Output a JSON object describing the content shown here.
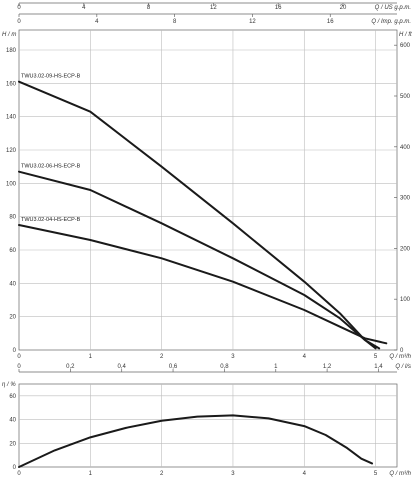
{
  "chart_data": [
    {
      "type": "line",
      "name": "head-chart",
      "x_axis": {
        "label": "Q / m³/h",
        "ticks": [
          0,
          1,
          2,
          3,
          4,
          5
        ],
        "range": [
          0,
          5.3
        ]
      },
      "top_axis_1": {
        "label": "Q / US g.p.m.",
        "ticks": [
          0,
          4,
          8,
          12,
          16,
          20
        ]
      },
      "top_axis_2": {
        "label": "Q / Imp. g.p.m.",
        "ticks": [
          0,
          4,
          8,
          12,
          16
        ]
      },
      "y_left": {
        "label": "H / m",
        "ticks": [
          0,
          20,
          40,
          60,
          80,
          100,
          120,
          140,
          160,
          180
        ],
        "range": [
          0,
          192
        ]
      },
      "y_right": {
        "label": "H / ft",
        "ticks": [
          0,
          100,
          200,
          300,
          400,
          500,
          600
        ]
      },
      "grid": true,
      "series": [
        {
          "name": "TWU3.02-09-HS-ECP-B",
          "points": [
            [
              0,
              161
            ],
            [
              1,
              143
            ],
            [
              2,
              110
            ],
            [
              3,
              76
            ],
            [
              4,
              41
            ],
            [
              4.5,
              22
            ],
            [
              4.85,
              6
            ],
            [
              5.05,
              1
            ]
          ]
        },
        {
          "name": "TWU3.02-06-HS-ECP-B",
          "points": [
            [
              0,
              107
            ],
            [
              1,
              96
            ],
            [
              2,
              76
            ],
            [
              3,
              55
            ],
            [
              4,
              33
            ],
            [
              4.5,
              19
            ],
            [
              4.85,
              6
            ],
            [
              5.0,
              1
            ]
          ]
        },
        {
          "name": "TWU3.02-04-HS-ECP-B",
          "points": [
            [
              0,
              75
            ],
            [
              1,
              66
            ],
            [
              2,
              55
            ],
            [
              3,
              41
            ],
            [
              4,
              24
            ],
            [
              4.5,
              14
            ],
            [
              4.85,
              7
            ],
            [
              5.15,
              4
            ]
          ]
        }
      ]
    },
    {
      "type": "line",
      "name": "efficiency-chart",
      "x_axis": {
        "label": "Q / m³/h",
        "ticks": [
          0,
          1,
          2,
          3,
          4,
          5
        ],
        "range": [
          0,
          5.3
        ]
      },
      "top_axis": {
        "label": "Q / l/s",
        "ticks": [
          "0",
          "0,2",
          "0,4",
          "0,6",
          "0,8",
          "1",
          "1,2",
          "1,4"
        ],
        "values": [
          0,
          0.2,
          0.4,
          0.6,
          0.8,
          1.0,
          1.2,
          1.4
        ]
      },
      "y_left": {
        "label": "η / %",
        "ticks": [
          0,
          20,
          40,
          60
        ],
        "range": [
          0,
          70
        ]
      },
      "grid": true,
      "series": [
        {
          "name": "efficiency",
          "points": [
            [
              0,
              0
            ],
            [
              0.5,
              14
            ],
            [
              1,
              25
            ],
            [
              1.5,
              33
            ],
            [
              2,
              39
            ],
            [
              2.5,
              42.5
            ],
            [
              3,
              43.5
            ],
            [
              3.5,
              41
            ],
            [
              4,
              34.5
            ],
            [
              4.3,
              27
            ],
            [
              4.6,
              16
            ],
            [
              4.8,
              7
            ],
            [
              4.95,
              3
            ]
          ]
        }
      ]
    }
  ]
}
